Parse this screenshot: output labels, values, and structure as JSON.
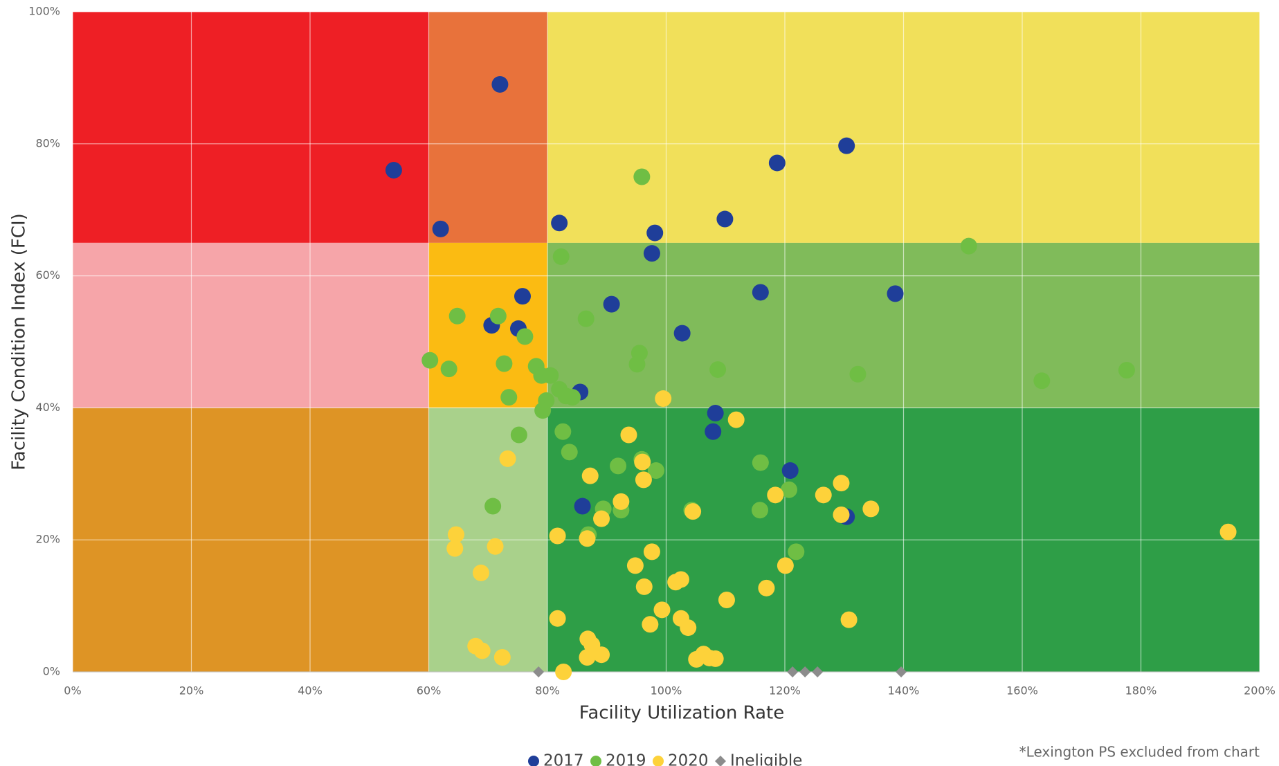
{
  "chart_data": {
    "type": "scatter",
    "xlabel": "Facility Utilization Rate",
    "ylabel": "Facility Condition Index (FCI)",
    "note": "*Lexington PS excluded from chart",
    "xlim": [
      0,
      200
    ],
    "ylim": [
      0,
      100
    ],
    "xticks": [
      {
        "value": 0,
        "label": "0%"
      },
      {
        "value": 20,
        "label": "20%"
      },
      {
        "value": 40,
        "label": "40%"
      },
      {
        "value": 60,
        "label": "60%"
      },
      {
        "value": 80,
        "label": "80%"
      },
      {
        "value": 100,
        "label": "100%"
      },
      {
        "value": 120,
        "label": "120%"
      },
      {
        "value": 140,
        "label": "140%"
      },
      {
        "value": 160,
        "label": "160%"
      },
      {
        "value": 180,
        "label": "180%"
      },
      {
        "value": 200,
        "label": "200%"
      }
    ],
    "yticks": [
      {
        "value": 0,
        "label": "0%"
      },
      {
        "value": 20,
        "label": "20%"
      },
      {
        "value": 40,
        "label": "40%"
      },
      {
        "value": 60,
        "label": "60%"
      },
      {
        "value": 80,
        "label": "80%"
      },
      {
        "value": 100,
        "label": "100%"
      }
    ],
    "grid": true,
    "legend": "bottom",
    "regions": [
      {
        "x": [
          0,
          60
        ],
        "y": [
          65,
          100
        ],
        "color": "#ee1f25"
      },
      {
        "x": [
          60,
          80
        ],
        "y": [
          65,
          100
        ],
        "color": "#e8723b"
      },
      {
        "x": [
          80,
          200
        ],
        "y": [
          65,
          100
        ],
        "color": "#f1e05a"
      },
      {
        "x": [
          0,
          60
        ],
        "y": [
          40,
          65
        ],
        "color": "#f6a5a9"
      },
      {
        "x": [
          60,
          80
        ],
        "y": [
          40,
          65
        ],
        "color": "#fbbb12"
      },
      {
        "x": [
          80,
          200
        ],
        "y": [
          40,
          65
        ],
        "color": "#80bb5a"
      },
      {
        "x": [
          0,
          60
        ],
        "y": [
          0,
          40
        ],
        "color": "#de9425"
      },
      {
        "x": [
          60,
          80
        ],
        "y": [
          0,
          40
        ],
        "color": "#a9d18b"
      },
      {
        "x": [
          80,
          200
        ],
        "y": [
          0,
          40
        ],
        "color": "#2e9e47"
      }
    ],
    "series": [
      {
        "name": "2017",
        "color": "#1f3e99",
        "marker": "circle",
        "x": [
          72.0,
          54.1,
          62.0,
          130.4,
          118.7,
          82.0,
          98.1,
          109.9,
          97.6,
          115.9,
          138.6,
          75.8,
          90.8,
          70.6,
          75.1,
          102.7,
          85.5,
          108.3,
          107.9,
          120.9,
          85.9,
          130.4
        ],
        "values": [
          89.0,
          76.0,
          67.1,
          79.7,
          77.1,
          68.0,
          66.5,
          68.6,
          63.4,
          57.5,
          57.3,
          56.9,
          55.7,
          52.5,
          52.0,
          51.3,
          42.4,
          39.2,
          36.4,
          30.5,
          25.1,
          23.5
        ]
      },
      {
        "name": "2019",
        "color": "#6fbe44",
        "marker": "circle",
        "x": [
          95.9,
          151.0,
          82.3,
          64.8,
          71.7,
          86.5,
          76.2,
          95.5,
          95.1,
          60.2,
          63.4,
          72.7,
          78.1,
          79.0,
          80.5,
          108.7,
          132.3,
          163.3,
          177.6,
          82.0,
          83.1,
          84.2,
          73.5,
          79.8,
          79.2,
          82.6,
          75.2,
          83.7,
          91.9,
          95.9,
          98.3,
          115.9,
          120.7,
          70.8,
          89.4,
          92.4,
          104.3,
          115.8,
          86.9,
          121.9
        ],
        "values": [
          75.0,
          64.5,
          62.9,
          53.9,
          53.9,
          53.5,
          50.8,
          48.3,
          46.6,
          47.2,
          45.9,
          46.7,
          46.3,
          44.9,
          44.9,
          45.8,
          45.1,
          44.1,
          45.7,
          42.8,
          41.8,
          41.6,
          41.6,
          41.1,
          39.6,
          36.4,
          35.9,
          33.3,
          31.2,
          32.2,
          30.5,
          31.7,
          27.6,
          25.1,
          24.7,
          24.5,
          24.5,
          24.5,
          20.8,
          18.2
        ]
      },
      {
        "name": "2020",
        "color": "#fdd23a",
        "marker": "circle",
        "x": [
          99.5,
          111.8,
          73.3,
          93.7,
          96.0,
          96.2,
          87.2,
          92.4,
          89.1,
          104.5,
          118.4,
          126.5,
          129.5,
          129.5,
          134.5,
          194.7,
          64.6,
          64.4,
          71.2,
          68.8,
          81.7,
          86.7,
          97.6,
          94.8,
          96.3,
          101.6,
          102.5,
          120.1,
          116.9,
          110.2,
          99.3,
          102.5,
          103.7,
          97.3,
          81.7,
          130.8,
          67.9,
          69.0,
          86.8,
          87.5,
          86.7,
          89.1,
          72.4,
          105.1,
          106.3,
          107.3,
          108.3,
          82.7
        ],
        "values": [
          41.4,
          38.2,
          32.3,
          35.9,
          31.8,
          29.1,
          29.7,
          25.8,
          23.2,
          24.3,
          26.8,
          26.8,
          28.6,
          23.8,
          24.7,
          21.2,
          20.8,
          18.7,
          19.0,
          15.0,
          20.6,
          20.2,
          18.2,
          16.1,
          12.9,
          13.6,
          14.0,
          16.1,
          12.7,
          10.9,
          9.4,
          8.1,
          6.7,
          7.2,
          8.1,
          7.9,
          3.9,
          3.2,
          5.0,
          4.1,
          2.2,
          2.6,
          2.2,
          1.9,
          2.7,
          2.1,
          2.0,
          0
        ]
      },
      {
        "name": "Ineligible",
        "color": "#8c8c8c",
        "marker": "diamond",
        "x": [
          78.5,
          121.3,
          123.4,
          125.5,
          139.6
        ],
        "values": [
          0,
          0,
          0,
          0,
          0
        ]
      }
    ]
  }
}
